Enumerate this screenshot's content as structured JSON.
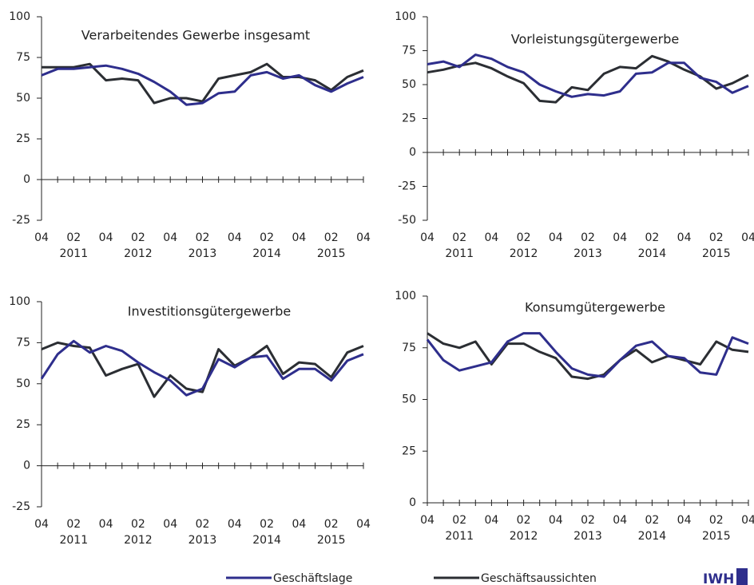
{
  "chart_data": [
    {
      "type": "line",
      "title": "Verarbeitendes Gewerbe insgesamt",
      "categories": [
        "04",
        null,
        "02",
        null,
        "04",
        null,
        "02",
        null,
        "04",
        null,
        "02",
        null,
        "04",
        null,
        "02",
        null,
        "04",
        null,
        "02",
        null,
        "04"
      ],
      "category_years": [
        null,
        null,
        "2011",
        null,
        null,
        null,
        "2012",
        null,
        null,
        null,
        "2013",
        null,
        null,
        null,
        "2014",
        null,
        null,
        null,
        "2015",
        null,
        null
      ],
      "ylim": [
        -25,
        100
      ],
      "yticks": [
        -25,
        0,
        25,
        50,
        75,
        100
      ],
      "series": [
        {
          "name": "Geschäftslage",
          "color": "#2e2e8c",
          "values": [
            64,
            68,
            68,
            69,
            70,
            68,
            65,
            60,
            54,
            46,
            47,
            53,
            54,
            64,
            66,
            62,
            64,
            58,
            54,
            59,
            63
          ]
        },
        {
          "name": "Geschäftsaussichten",
          "color": "#2b2e33",
          "values": [
            69,
            69,
            69,
            71,
            61,
            62,
            61,
            47,
            50,
            50,
            48,
            62,
            64,
            66,
            71,
            63,
            63,
            61,
            55,
            63,
            67
          ]
        }
      ]
    },
    {
      "type": "line",
      "title": "Vorleistungsgütergewerbe",
      "categories": [
        "04",
        null,
        "02",
        null,
        "04",
        null,
        "02",
        null,
        "04",
        null,
        "02",
        null,
        "04",
        null,
        "02",
        null,
        "04",
        null,
        "02",
        null,
        "04"
      ],
      "category_years": [
        null,
        null,
        "2011",
        null,
        null,
        null,
        "2012",
        null,
        null,
        null,
        "2013",
        null,
        null,
        null,
        "2014",
        null,
        null,
        null,
        "2015",
        null,
        null
      ],
      "ylim": [
        -50,
        100
      ],
      "yticks": [
        -50,
        -25,
        0,
        25,
        50,
        75,
        100
      ],
      "series": [
        {
          "name": "Geschäftslage",
          "color": "#2e2e8c",
          "values": [
            65,
            67,
            63,
            72,
            69,
            63,
            59,
            50,
            45,
            41,
            43,
            42,
            45,
            58,
            59,
            66,
            66,
            55,
            52,
            44,
            49
          ]
        },
        {
          "name": "Geschäftsaussichten",
          "color": "#2b2e33",
          "values": [
            59,
            61,
            64,
            66,
            62,
            56,
            51,
            38,
            37,
            48,
            46,
            58,
            63,
            62,
            71,
            67,
            61,
            56,
            47,
            51,
            57
          ]
        }
      ]
    },
    {
      "type": "line",
      "title": "Investitionsgütergewerbe",
      "categories": [
        "04",
        null,
        "02",
        null,
        "04",
        null,
        "02",
        null,
        "04",
        null,
        "02",
        null,
        "04",
        null,
        "02",
        null,
        "04",
        null,
        "02",
        null,
        "04"
      ],
      "category_years": [
        null,
        null,
        "2011",
        null,
        null,
        null,
        "2012",
        null,
        null,
        null,
        "2013",
        null,
        null,
        null,
        "2014",
        null,
        null,
        null,
        "2015",
        null,
        null
      ],
      "ylim": [
        -25,
        100
      ],
      "yticks": [
        -25,
        0,
        25,
        50,
        75,
        100
      ],
      "series": [
        {
          "name": "Geschäftslage",
          "color": "#2e2e8c",
          "values": [
            53,
            68,
            76,
            69,
            73,
            70,
            63,
            57,
            52,
            43,
            47,
            65,
            60,
            66,
            67,
            53,
            59,
            59,
            52,
            64,
            68
          ]
        },
        {
          "name": "Geschäftsaussichten",
          "color": "#2b2e33",
          "values": [
            71,
            75,
            73,
            72,
            55,
            59,
            62,
            42,
            55,
            47,
            45,
            71,
            61,
            66,
            73,
            56,
            63,
            62,
            54,
            69,
            73
          ]
        }
      ]
    },
    {
      "type": "line",
      "title": "Konsumgütergewerbe",
      "categories": [
        "04",
        null,
        "02",
        null,
        "04",
        null,
        "02",
        null,
        "04",
        null,
        "02",
        null,
        "04",
        null,
        "02",
        null,
        "04",
        null,
        "02",
        null,
        "04"
      ],
      "category_years": [
        null,
        null,
        "2011",
        null,
        null,
        null,
        "2012",
        null,
        null,
        null,
        "2013",
        null,
        null,
        null,
        "2014",
        null,
        null,
        null,
        "2015",
        null,
        null
      ],
      "ylim": [
        0,
        100
      ],
      "yticks": [
        0,
        25,
        50,
        75,
        100
      ],
      "series": [
        {
          "name": "Geschäftslage",
          "color": "#2e2e8c",
          "values": [
            79,
            69,
            64,
            66,
            68,
            78,
            82,
            82,
            73,
            65,
            62,
            61,
            69,
            76,
            78,
            71,
            70,
            63,
            62,
            80,
            77
          ]
        },
        {
          "name": "Geschäftsaussichten",
          "color": "#2b2e33",
          "values": [
            82,
            77,
            75,
            78,
            67,
            77,
            77,
            73,
            70,
            61,
            60,
            62,
            69,
            74,
            68,
            71,
            69,
            67,
            78,
            74,
            73
          ]
        }
      ]
    }
  ],
  "logo": "IWH"
}
